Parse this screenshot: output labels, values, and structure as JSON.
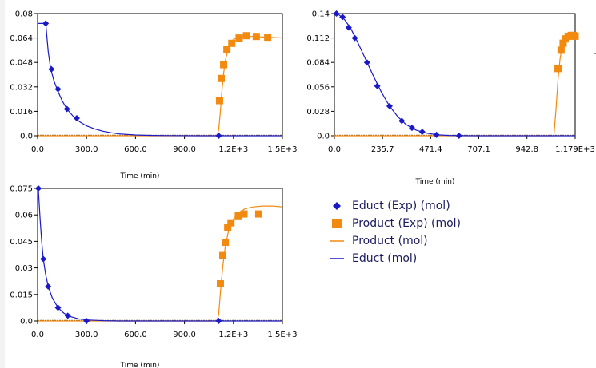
{
  "colors": {
    "educt": "#1919c8",
    "product": "#f28a0f",
    "axis": "#000000",
    "baseline": "#8c6a3a"
  },
  "legend": [
    {
      "label": "Educt (Exp) (mol)",
      "symbol": "diamond",
      "color": "#1919c8"
    },
    {
      "label": "Product (Exp) (mol)",
      "symbol": "square",
      "color": "#f28a0f"
    },
    {
      "label": "Product (mol)",
      "symbol": "line",
      "color": "#f28a0f"
    },
    {
      "label": "Educt (mol)",
      "symbol": "line",
      "color": "#1919c8"
    }
  ],
  "chart_data": [
    {
      "type": "scatter",
      "xlabel": "Time (min)",
      "xlim": [
        0,
        1500
      ],
      "ylim": [
        0,
        0.08
      ],
      "xticks": [
        0,
        300,
        600,
        900,
        1200,
        1500
      ],
      "xtick_labels": [
        "0.0",
        "300.0",
        "600.0",
        "900.0",
        "1.2E+3",
        "1.5E+3"
      ],
      "yticks": [
        0,
        0.016,
        0.032,
        0.048,
        0.064,
        0.08
      ],
      "ytick_labels": [
        "0.0",
        "0.016",
        "0.032",
        "0.048",
        "0.064",
        "0.08"
      ],
      "series": [
        {
          "name": "Educt (Exp) (mol)",
          "kind": "points",
          "marker": "diamond",
          "color": "#1919c8",
          "x": [
            50,
            85,
            125,
            180,
            240,
            1110
          ],
          "y": [
            0.0735,
            0.0435,
            0.0305,
            0.0175,
            0.0115,
            0.0
          ]
        },
        {
          "name": "Product (Exp) (mol)",
          "kind": "points",
          "marker": "square",
          "color": "#f28a0f",
          "x": [
            1115,
            1125,
            1140,
            1160,
            1190,
            1235,
            1280,
            1340,
            1410
          ],
          "y": [
            0.023,
            0.0375,
            0.0465,
            0.0565,
            0.0605,
            0.064,
            0.0655,
            0.065,
            0.0645
          ]
        },
        {
          "name": "Product (mol)",
          "kind": "line",
          "color": "#f28a0f",
          "x": [
            0,
            1100,
            1110,
            1120,
            1130,
            1140,
            1150,
            1165,
            1180,
            1200,
            1230,
            1270,
            1320,
            1400,
            1500
          ],
          "y": [
            0,
            0,
            0.004,
            0.016,
            0.03,
            0.041,
            0.049,
            0.056,
            0.06,
            0.063,
            0.0645,
            0.065,
            0.065,
            0.0645,
            0.064
          ]
        },
        {
          "name": "Educt (mol)",
          "kind": "line",
          "color": "#1919c8",
          "x": [
            0,
            30,
            50,
            65,
            80,
            100,
            125,
            150,
            180,
            220,
            260,
            300,
            350,
            400,
            450,
            500,
            600,
            700,
            800,
            1000,
            1500
          ],
          "y": [
            0.0735,
            0.0735,
            0.0735,
            0.055,
            0.044,
            0.036,
            0.029,
            0.023,
            0.0175,
            0.0125,
            0.009,
            0.0065,
            0.0045,
            0.003,
            0.002,
            0.0012,
            0.0005,
            0.0002,
            0.0001,
            0,
            0
          ]
        }
      ]
    },
    {
      "type": "scatter",
      "xlabel": "Time (min)",
      "xlim": [
        0,
        1179
      ],
      "ylim": [
        0,
        0.14
      ],
      "xticks": [
        0,
        235.7,
        471.4,
        707.1,
        942.8,
        1179
      ],
      "xtick_labels": [
        "0.0",
        "235.7",
        "471.4",
        "707.1",
        "942.8",
        "1.179E+3"
      ],
      "yticks": [
        0,
        0.028,
        0.056,
        0.084,
        0.112,
        0.14
      ],
      "ytick_labels": [
        "0.0",
        "0.028",
        "0.056",
        "0.084",
        "0.112",
        "0.14"
      ],
      "series": [
        {
          "name": "Educt (Exp) (mol)",
          "kind": "points",
          "marker": "diamond",
          "color": "#1919c8",
          "x": [
            10,
            40,
            70,
            100,
            160,
            210,
            270,
            330,
            380,
            430,
            500,
            610
          ],
          "y": [
            0.14,
            0.136,
            0.124,
            0.112,
            0.084,
            0.057,
            0.034,
            0.017,
            0.009,
            0.0045,
            0.001,
            0.0
          ]
        },
        {
          "name": "Product (Exp) (mol)",
          "kind": "points",
          "marker": "square",
          "color": "#f28a0f",
          "x": [
            1095,
            1110,
            1120,
            1130,
            1145,
            1160,
            1170,
            1179
          ],
          "y": [
            0.077,
            0.098,
            0.106,
            0.111,
            0.114,
            0.115,
            0.115,
            0.114
          ]
        },
        {
          "name": "Product (mol)",
          "kind": "line",
          "color": "#f28a0f",
          "x": [
            0,
            1075,
            1085,
            1095,
            1105,
            1115,
            1125,
            1140,
            1155,
            1170,
            1179
          ],
          "y": [
            0,
            0,
            0.03,
            0.065,
            0.088,
            0.102,
            0.11,
            0.114,
            0.116,
            0.116,
            0.115
          ]
        },
        {
          "name": "Educt (mol)",
          "kind": "line",
          "color": "#1919c8",
          "x": [
            0,
            20,
            50,
            80,
            110,
            150,
            190,
            230,
            270,
            310,
            350,
            400,
            450,
            500,
            560,
            620,
            700,
            800,
            1000,
            1179
          ],
          "y": [
            0.14,
            0.139,
            0.133,
            0.123,
            0.109,
            0.089,
            0.069,
            0.05,
            0.034,
            0.022,
            0.013,
            0.0065,
            0.003,
            0.0012,
            0.0004,
            0.0001,
            0,
            0,
            0,
            0
          ]
        }
      ]
    },
    {
      "type": "scatter",
      "xlabel": "Time (min)",
      "xlim": [
        0,
        1500
      ],
      "ylim": [
        0,
        0.075
      ],
      "xticks": [
        0,
        300,
        600,
        900,
        1200,
        1500
      ],
      "xtick_labels": [
        "0.0",
        "300.0",
        "600.0",
        "900.0",
        "1.2E+3",
        "1.5E+3"
      ],
      "yticks": [
        0,
        0.015,
        0.03,
        0.045,
        0.06,
        0.075
      ],
      "ytick_labels": [
        "0.0",
        "0.015",
        "0.03",
        "0.045",
        "0.06",
        "0.075"
      ],
      "series": [
        {
          "name": "Educt (Exp) (mol)",
          "kind": "points",
          "marker": "diamond",
          "color": "#1919c8",
          "x": [
            5,
            35,
            65,
            125,
            185,
            300,
            1110
          ],
          "y": [
            0.075,
            0.035,
            0.0195,
            0.0075,
            0.003,
            0.0,
            0.0
          ]
        },
        {
          "name": "Product (Exp) (mol)",
          "kind": "points",
          "marker": "square",
          "color": "#f28a0f",
          "x": [
            1120,
            1135,
            1150,
            1165,
            1185,
            1230,
            1265,
            1355
          ],
          "y": [
            0.021,
            0.037,
            0.0445,
            0.053,
            0.0555,
            0.0595,
            0.0605,
            0.0605
          ]
        },
        {
          "name": "Product (mol)",
          "kind": "line",
          "color": "#f28a0f",
          "x": [
            0,
            1100,
            1110,
            1120,
            1135,
            1150,
            1170,
            1195,
            1230,
            1270,
            1320,
            1380,
            1440,
            1500
          ],
          "y": [
            0,
            0,
            0.004,
            0.016,
            0.031,
            0.042,
            0.051,
            0.057,
            0.061,
            0.0635,
            0.0645,
            0.065,
            0.065,
            0.0645
          ]
        },
        {
          "name": "Educt (mol)",
          "kind": "line",
          "color": "#1919c8",
          "x": [
            0,
            5,
            15,
            25,
            35,
            50,
            65,
            90,
            125,
            160,
            200,
            250,
            300,
            400,
            500,
            700,
            1000,
            1500
          ],
          "y": [
            0.075,
            0.074,
            0.058,
            0.045,
            0.035,
            0.026,
            0.0195,
            0.013,
            0.0075,
            0.0045,
            0.0025,
            0.0012,
            0.0006,
            0.0002,
            0,
            0,
            0,
            0
          ]
        }
      ]
    }
  ]
}
